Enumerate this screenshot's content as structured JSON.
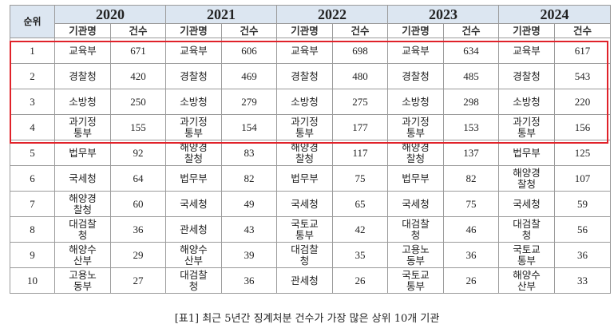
{
  "table": {
    "rank_header": "순위",
    "years": [
      "2020",
      "2021",
      "2022",
      "2023",
      "2024"
    ],
    "sub_headers": {
      "org": "기관명",
      "count": "건수"
    },
    "rows": [
      {
        "rank": "1",
        "cells": [
          [
            "교육부",
            "671"
          ],
          [
            "교육부",
            "606"
          ],
          [
            "교육부",
            "698"
          ],
          [
            "교육부",
            "634"
          ],
          [
            "교육부",
            "617"
          ]
        ]
      },
      {
        "rank": "2",
        "cells": [
          [
            "경찰청",
            "420"
          ],
          [
            "경찰청",
            "469"
          ],
          [
            "경찰청",
            "480"
          ],
          [
            "경찰청",
            "485"
          ],
          [
            "경찰청",
            "543"
          ]
        ]
      },
      {
        "rank": "3",
        "cells": [
          [
            "소방청",
            "250"
          ],
          [
            "소방청",
            "279"
          ],
          [
            "소방청",
            "275"
          ],
          [
            "소방청",
            "298"
          ],
          [
            "소방청",
            "220"
          ]
        ]
      },
      {
        "rank": "4",
        "cells": [
          [
            "과기정\n통부",
            "155"
          ],
          [
            "과기정\n통부",
            "154"
          ],
          [
            "과기정\n통부",
            "177"
          ],
          [
            "과기정\n통부",
            "153"
          ],
          [
            "과기정\n통부",
            "156"
          ]
        ]
      },
      {
        "rank": "5",
        "cells": [
          [
            "법무부",
            "92"
          ],
          [
            "해양경\n찰청",
            "83"
          ],
          [
            "해양경\n찰청",
            "117"
          ],
          [
            "해양경\n찰청",
            "137"
          ],
          [
            "법무부",
            "125"
          ]
        ]
      },
      {
        "rank": "6",
        "cells": [
          [
            "국세청",
            "64"
          ],
          [
            "법무부",
            "82"
          ],
          [
            "법무부",
            "75"
          ],
          [
            "법무부",
            "82"
          ],
          [
            "해양경\n찰청",
            "107"
          ]
        ]
      },
      {
        "rank": "7",
        "cells": [
          [
            "해양경\n찰청",
            "60"
          ],
          [
            "국세청",
            "49"
          ],
          [
            "국세청",
            "65"
          ],
          [
            "국세청",
            "75"
          ],
          [
            "국세청",
            "59"
          ]
        ]
      },
      {
        "rank": "8",
        "cells": [
          [
            "대검찰\n청",
            "36"
          ],
          [
            "관세청",
            "43"
          ],
          [
            "국토교\n통부",
            "42"
          ],
          [
            "대검찰\n청",
            "46"
          ],
          [
            "대검찰\n청",
            "56"
          ]
        ]
      },
      {
        "rank": "9",
        "cells": [
          [
            "해양수\n산부",
            "29"
          ],
          [
            "해양수\n산부",
            "39"
          ],
          [
            "대검찰\n청",
            "35"
          ],
          [
            "고용노\n동부",
            "36"
          ],
          [
            "국토교\n통부",
            "36"
          ]
        ]
      },
      {
        "rank": "10",
        "cells": [
          [
            "고용노\n동부",
            "27"
          ],
          [
            "대검찰\n청",
            "36"
          ],
          [
            "관세청",
            "26"
          ],
          [
            "국토교\n통부",
            "26"
          ],
          [
            "해양수\n산부",
            "33"
          ]
        ]
      }
    ],
    "highlight_color": "#e0222a",
    "header_bg": "#dce6f1"
  },
  "caption": "[표1] 최근 5년간 징계처분 건수가 가장 많은 상위 10개 기관"
}
